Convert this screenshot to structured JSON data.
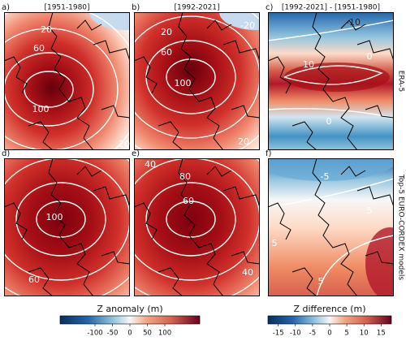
{
  "panels": [
    {
      "label": "a)",
      "title": "[1951-1980]",
      "contour_labels": [
        20,
        60,
        100,
        20
      ]
    },
    {
      "label": "b)",
      "title": "[1992-2021]",
      "contour_labels": [
        20,
        -20,
        60,
        100,
        20
      ]
    },
    {
      "label": "c)",
      "title": "[1992-2021] - [1951-1980]",
      "contour_labels": [
        -10,
        0,
        10,
        0
      ]
    },
    {
      "label": "d)",
      "contour_labels": [
        100,
        60
      ]
    },
    {
      "label": "e)",
      "contour_labels": [
        40,
        80,
        60,
        40
      ]
    },
    {
      "label": "f)",
      "contour_labels": [
        -5,
        5,
        5,
        5
      ]
    }
  ],
  "row_labels": [
    "ERA-5",
    "Top-5 EURO-CORDEX models"
  ],
  "colorbars": [
    {
      "label": "Z anomaly (m)",
      "lim": [
        -200,
        200
      ],
      "ticks": [
        -100,
        -50,
        0,
        50,
        100
      ]
    },
    {
      "label": "Z difference (m)",
      "lim": [
        -18,
        18
      ],
      "ticks": [
        -15,
        -10,
        -5,
        0,
        5,
        10,
        15
      ]
    }
  ]
}
